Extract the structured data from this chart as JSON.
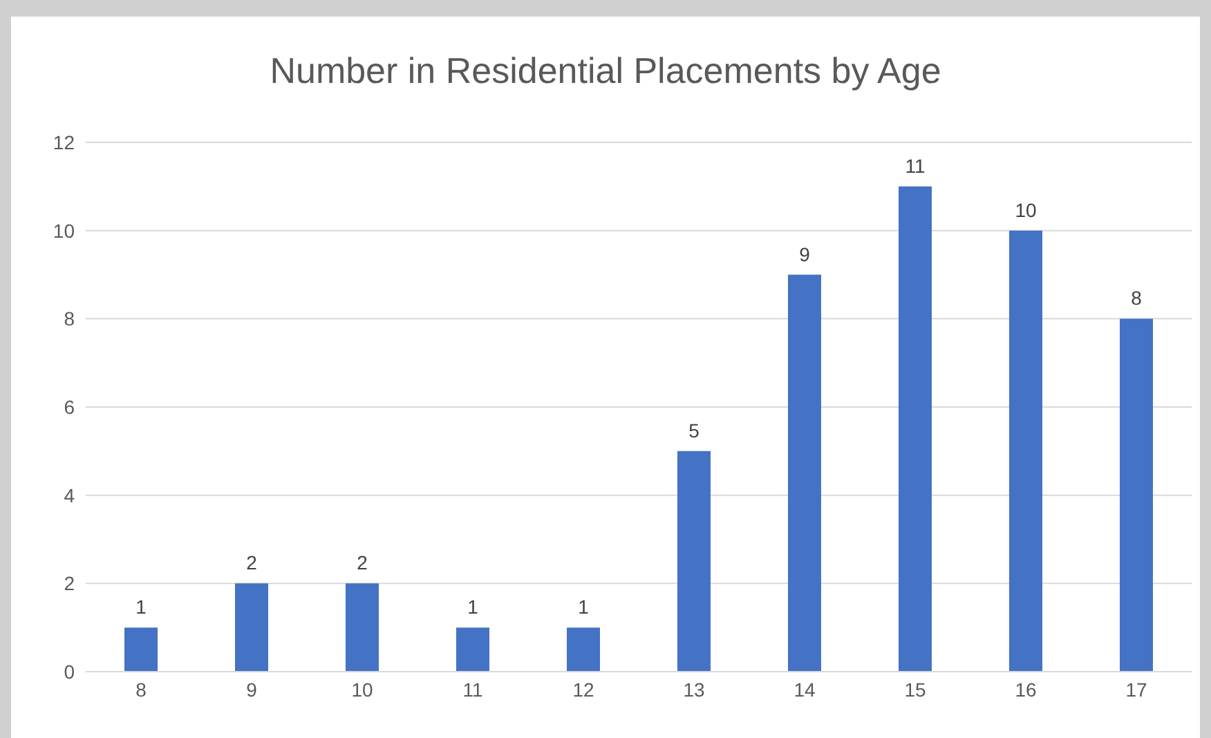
{
  "chart_data": {
    "type": "bar",
    "title": "Number in Residential Placements by Age",
    "categories": [
      "8",
      "9",
      "10",
      "11",
      "12",
      "13",
      "14",
      "15",
      "16",
      "17"
    ],
    "values": [
      1,
      2,
      2,
      1,
      1,
      5,
      9,
      11,
      10,
      8
    ],
    "color": "#4472c4",
    "ylim": [
      0,
      12
    ],
    "yticks": [
      0,
      2,
      4,
      6,
      8,
      10,
      12
    ],
    "grid": "y",
    "data_labels": true
  }
}
